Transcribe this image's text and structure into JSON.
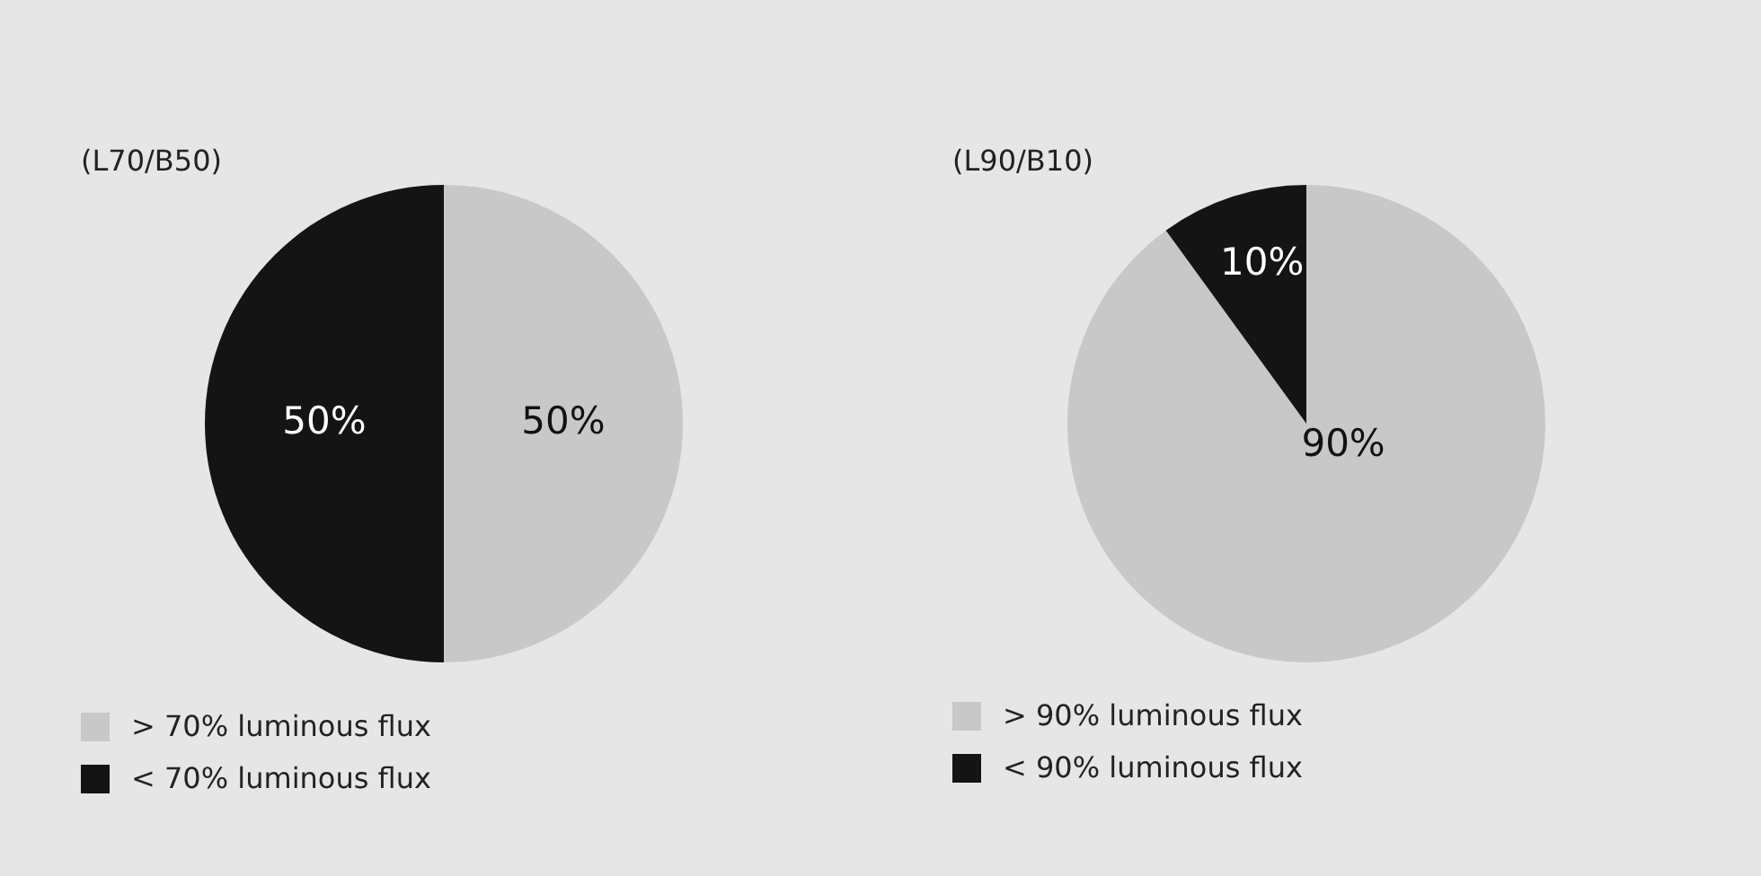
{
  "chart_data": [
    {
      "type": "pie",
      "title": "(L70/B50)",
      "categories": [
        "> 70% luminous flux",
        "< 70% luminous flux"
      ],
      "values": [
        50,
        50
      ],
      "colors": [
        "#c8c8c8",
        "#141414"
      ],
      "value_labels": [
        "50%",
        "50%"
      ],
      "legend": "bottom left"
    },
    {
      "type": "pie",
      "title": "(L90/B10)",
      "categories": [
        "> 90% luminous flux",
        "< 90% luminous flux"
      ],
      "values": [
        90,
        10
      ],
      "colors": [
        "#c8c8c8",
        "#141414"
      ],
      "value_labels": [
        "90%",
        "10%"
      ],
      "legend": "bottom left"
    }
  ]
}
